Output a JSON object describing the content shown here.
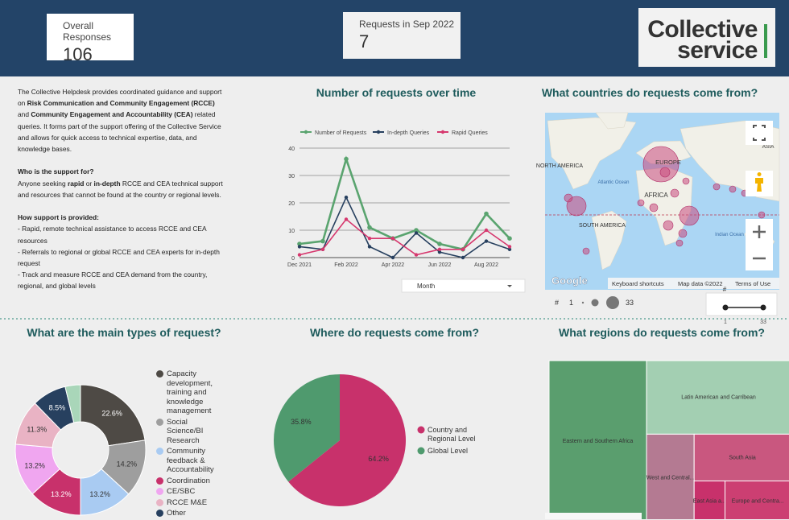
{
  "header": {
    "cards": [
      {
        "label": "Overall Responses",
        "value": 106
      },
      {
        "label": "Requests in Sep 2022",
        "value": 7
      }
    ],
    "logo": [
      "Collective",
      "service"
    ]
  },
  "intro": [
    [
      {
        "text": "The Collective Helpdesk provides coordinated guidance and support on "
      },
      {
        "text": "Risk Communication and Community Engagement (RCCE)",
        "bold": true
      },
      {
        "text": " and "
      },
      {
        "text": "Community Engagement and Accountability (CEA)",
        "bold": true
      },
      {
        "text": " related queries. It forms part of the support offering of the Collective Service and allows for quick access to technical expertise, data, and knowledge bases."
      }
    ],
    [
      {
        "text": "Who is the support for?",
        "bold": true
      }
    ],
    [
      {
        "text": "Anyone seeking "
      },
      {
        "text": "rapid",
        "bold": true
      },
      {
        "text": " or "
      },
      {
        "text": "in-depth",
        "bold": true
      },
      {
        "text": " RCCE and CEA technical support and resources that cannot be found at the country or regional levels."
      }
    ],
    [
      {
        "text": "How support is provided:",
        "bold": true
      }
    ],
    [
      {
        "text": "- Rapid, remote technical assistance to access RCCE and CEA resources"
      }
    ],
    [
      {
        "text": "- Referrals to regional or global RCCE and CEA experts for in-depth request"
      }
    ],
    [
      {
        "text": "- Track and measure RCCE and CEA demand from the country, regional, and global levels"
      }
    ]
  ],
  "chart_data": [
    {
      "type": "line",
      "title": "Number of requests over time",
      "categories": [
        "Dec 2021",
        null,
        "Feb 2022",
        null,
        "Apr 2022",
        null,
        "Jun 2022",
        null,
        "Aug 2022",
        null
      ],
      "series": [
        {
          "name": "Number of Requests",
          "color": "#5aa46f",
          "values": [
            5,
            6,
            36,
            11,
            7,
            10,
            5,
            3,
            16,
            7
          ]
        },
        {
          "name": "In-depth Queries",
          "color": "#27405f",
          "values": [
            4,
            3,
            22,
            4,
            0,
            9,
            2,
            0,
            6,
            3
          ]
        },
        {
          "name": "Rapid Queries",
          "color": "#d6386e",
          "values": [
            1,
            3,
            14,
            7,
            7,
            1,
            3,
            3,
            10,
            4
          ]
        }
      ],
      "ylim": [
        0,
        40
      ],
      "yticks": [
        0,
        10,
        20,
        30,
        40
      ],
      "grid": true,
      "control": "Month"
    },
    {
      "type": "map",
      "title": "What countries do requests come from?",
      "labels": [
        "NORTH AMERICA",
        "EUROPE",
        "AFRICA",
        "SOUTH AMERICA",
        "Atlantic Ocean",
        "Indian Ocean",
        "ASIA"
      ],
      "attribution": [
        "Google",
        "Keyboard shortcuts",
        "Map data ©2022",
        "Terms of Use"
      ],
      "size_title": "#",
      "size_range": [
        1,
        33
      ]
    },
    {
      "type": "donut",
      "title": "What are the main types of request?",
      "categories": [
        "Capacity development, training and knowledge management",
        "Social Science/BI Research",
        "Community feedback & Accountability",
        "Coordination",
        "CE/SBC",
        "RCCE M&E",
        "Other",
        null
      ],
      "values": [
        22.6,
        14.2,
        13.2,
        13.2,
        13.2,
        11.3,
        8.5,
        3.8
      ],
      "value_labels": [
        "22.6%",
        "14.2%",
        "13.2%",
        "13.2%",
        "13.2%",
        "11.3%",
        "8.5%",
        null
      ],
      "colors": [
        "#4e4a45",
        "#9e9e9e",
        "#a9cbf2",
        "#c8316b",
        "#f0a6f0",
        "#e9b3c4",
        "#27405f",
        "#a9d6b9"
      ]
    },
    {
      "type": "pie",
      "title": "Where do requests come from?",
      "categories": [
        "Country and Regional Level",
        "Global Level"
      ],
      "values": [
        64.2,
        35.8
      ],
      "value_labels": [
        "64.2%",
        "35.8%"
      ],
      "colors": [
        "#c8316b",
        "#4f9a6e"
      ]
    },
    {
      "type": "treemap",
      "title": "What regions do requests come from?",
      "categories": [
        "Eastern and Southern Africa",
        "Latin American and Carribean",
        "West and Central...",
        "South Asia",
        "East Asia a...",
        "Europe and Centra..."
      ],
      "values": [
        40,
        27,
        10.6,
        11.5,
        3.2,
        6.8
      ],
      "colors": [
        "#5a9e6e",
        "#a3cfb2",
        "#b47a92",
        "#c9577f",
        "#c8316b",
        "#cc3f72"
      ]
    }
  ]
}
